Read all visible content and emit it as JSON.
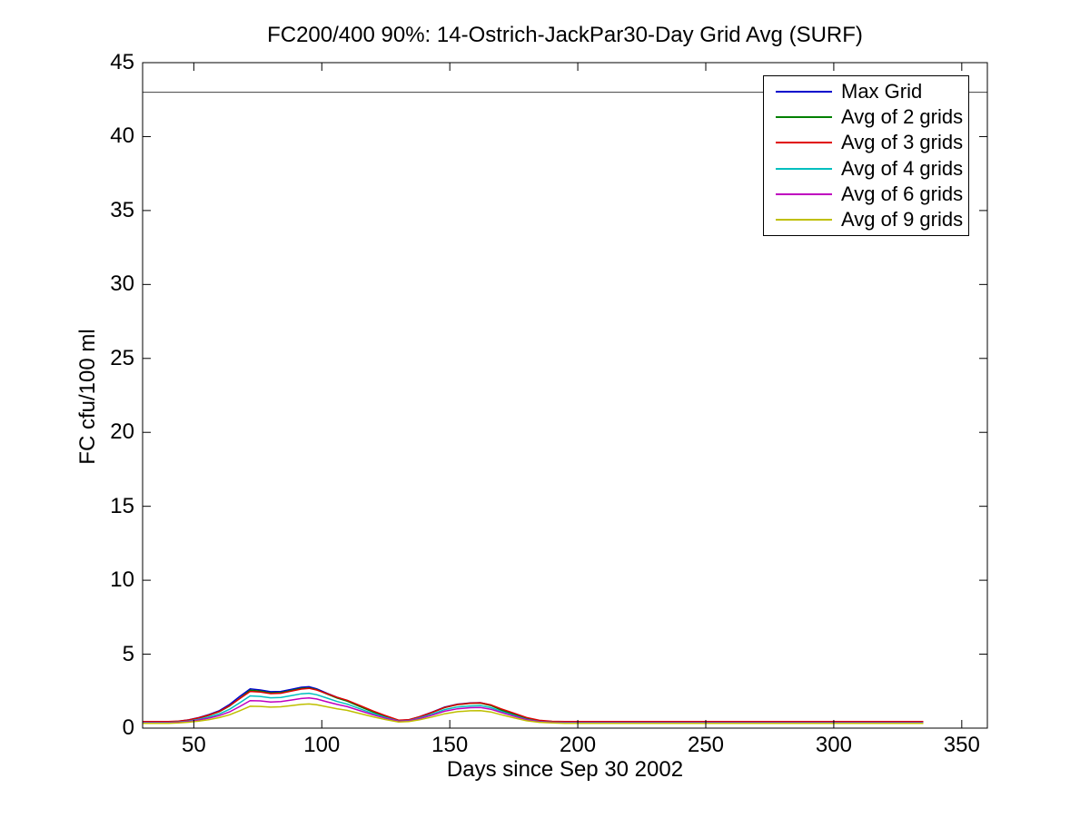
{
  "chart_data": {
    "type": "line",
    "title": "FC200/400 90%: 14-Ostrich-JackPar30-Day Grid Avg (SURF)",
    "xlabel": "Days since Sep 30 2002",
    "ylabel": "FC cfu/100 ml",
    "xlim": [
      30,
      360
    ],
    "ylim": [
      0,
      45
    ],
    "xticks": [
      50,
      100,
      150,
      200,
      250,
      300,
      350
    ],
    "yticks": [
      0,
      5,
      10,
      15,
      20,
      25,
      30,
      35,
      40,
      45
    ],
    "grid": false,
    "legend_position": "top-right",
    "frame_color": "#000000",
    "threshold": {
      "value": 43,
      "color": "#404040"
    },
    "x": [
      30,
      35,
      40,
      44,
      48,
      52,
      56,
      60,
      64,
      68,
      72,
      76,
      80,
      84,
      88,
      92,
      95,
      98,
      102,
      106,
      110,
      115,
      120,
      125,
      130,
      134,
      138,
      143,
      148,
      153,
      158,
      162,
      166,
      170,
      175,
      180,
      185,
      190,
      195,
      200,
      210,
      225,
      250,
      275,
      300,
      320,
      335
    ],
    "series": [
      {
        "name": "Max Grid",
        "color": "#0000cc",
        "values": [
          0.42,
          0.42,
          0.42,
          0.46,
          0.56,
          0.72,
          0.92,
          1.18,
          1.6,
          2.15,
          2.65,
          2.58,
          2.46,
          2.48,
          2.62,
          2.76,
          2.8,
          2.66,
          2.36,
          2.08,
          1.86,
          1.48,
          1.12,
          0.8,
          0.52,
          0.56,
          0.76,
          1.08,
          1.42,
          1.62,
          1.7,
          1.72,
          1.56,
          1.26,
          0.95,
          0.66,
          0.5,
          0.44,
          0.42,
          0.42,
          0.42,
          0.42,
          0.42,
          0.42,
          0.42,
          0.42,
          0.42
        ]
      },
      {
        "name": "Avg of 2 grids",
        "color": "#008000",
        "values": [
          0.4,
          0.4,
          0.4,
          0.44,
          0.53,
          0.68,
          0.87,
          1.11,
          1.5,
          2.02,
          2.56,
          2.5,
          2.38,
          2.4,
          2.54,
          2.68,
          2.72,
          2.6,
          2.31,
          2.03,
          1.82,
          1.45,
          1.09,
          0.78,
          0.51,
          0.55,
          0.74,
          1.05,
          1.39,
          1.59,
          1.67,
          1.69,
          1.53,
          1.23,
          0.93,
          0.64,
          0.48,
          0.42,
          0.4,
          0.4,
          0.4,
          0.4,
          0.4,
          0.4,
          0.4,
          0.4,
          0.4
        ]
      },
      {
        "name": "Avg of 3 grids",
        "color": "#e00000",
        "values": [
          0.44,
          0.44,
          0.44,
          0.47,
          0.55,
          0.7,
          0.89,
          1.13,
          1.52,
          2.0,
          2.48,
          2.44,
          2.33,
          2.36,
          2.5,
          2.64,
          2.69,
          2.58,
          2.33,
          2.08,
          1.88,
          1.52,
          1.16,
          0.84,
          0.54,
          0.57,
          0.76,
          1.06,
          1.4,
          1.6,
          1.69,
          1.71,
          1.58,
          1.31,
          1.02,
          0.72,
          0.53,
          0.46,
          0.44,
          0.44,
          0.44,
          0.44,
          0.44,
          0.44,
          0.44,
          0.44,
          0.44
        ]
      },
      {
        "name": "Avg of 4 grids",
        "color": "#00bfbf",
        "values": [
          0.38,
          0.38,
          0.38,
          0.41,
          0.48,
          0.6,
          0.76,
          0.96,
          1.28,
          1.72,
          2.18,
          2.14,
          2.05,
          2.07,
          2.19,
          2.32,
          2.36,
          2.26,
          2.03,
          1.8,
          1.62,
          1.3,
          0.99,
          0.72,
          0.48,
          0.51,
          0.68,
          0.94,
          1.25,
          1.43,
          1.5,
          1.52,
          1.39,
          1.13,
          0.86,
          0.59,
          0.45,
          0.4,
          0.38,
          0.38,
          0.38,
          0.38,
          0.38,
          0.38,
          0.38,
          0.38,
          0.38
        ]
      },
      {
        "name": "Avg of 6 grids",
        "color": "#bf00bf",
        "values": [
          0.36,
          0.36,
          0.36,
          0.39,
          0.45,
          0.55,
          0.68,
          0.85,
          1.1,
          1.47,
          1.86,
          1.84,
          1.77,
          1.79,
          1.9,
          2.0,
          2.04,
          1.97,
          1.78,
          1.6,
          1.45,
          1.17,
          0.9,
          0.66,
          0.46,
          0.49,
          0.64,
          0.87,
          1.14,
          1.31,
          1.38,
          1.4,
          1.28,
          1.06,
          0.81,
          0.57,
          0.43,
          0.38,
          0.36,
          0.36,
          0.36,
          0.36,
          0.36,
          0.36,
          0.36,
          0.36,
          0.36
        ]
      },
      {
        "name": "Avg of 9 grids",
        "color": "#bfbf00",
        "values": [
          0.32,
          0.32,
          0.32,
          0.35,
          0.4,
          0.48,
          0.58,
          0.71,
          0.9,
          1.18,
          1.48,
          1.47,
          1.42,
          1.44,
          1.52,
          1.6,
          1.63,
          1.58,
          1.44,
          1.31,
          1.2,
          0.98,
          0.77,
          0.58,
          0.42,
          0.44,
          0.56,
          0.75,
          0.97,
          1.11,
          1.17,
          1.18,
          1.09,
          0.91,
          0.7,
          0.5,
          0.39,
          0.35,
          0.32,
          0.32,
          0.32,
          0.32,
          0.32,
          0.32,
          0.32,
          0.32,
          0.32
        ]
      }
    ]
  }
}
